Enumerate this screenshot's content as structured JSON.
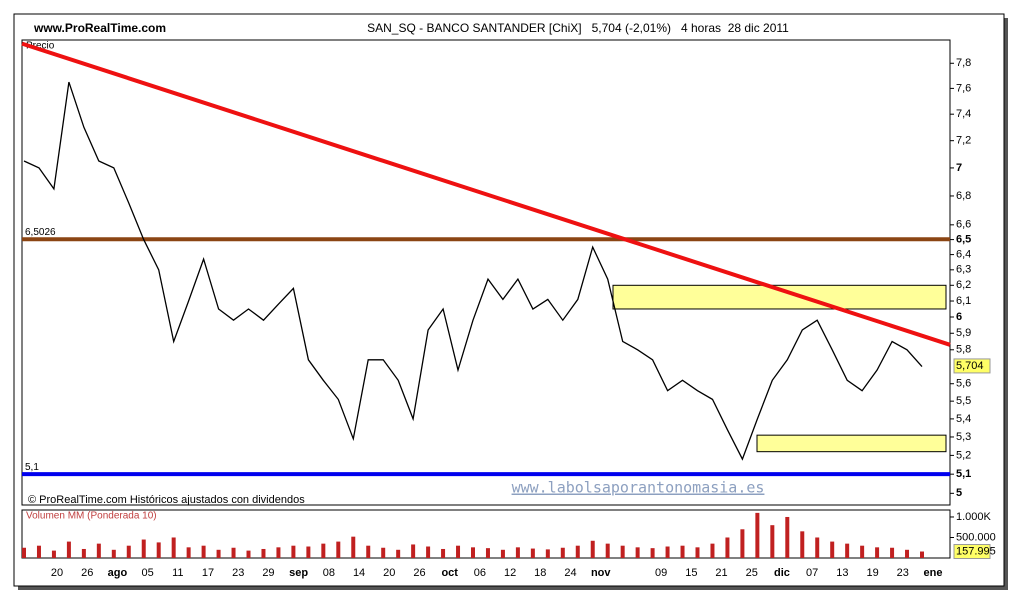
{
  "header": {
    "site": "www.ProRealTime.com",
    "title": "SAN_SQ - BANCO SANTANDER [ChiX]   5,704 (-2,01%)   4 horas  28 dic 2011"
  },
  "footer_note": "© ProRealTime.com Históricos ajustados con dividendos",
  "watermark": "www.labolsaporantonomasia.es",
  "x_axis": {
    "labels": [
      "20",
      "26",
      "ago",
      "05",
      "11",
      "17",
      "23",
      "29",
      "sep",
      "08",
      "14",
      "20",
      "26",
      "oct",
      "06",
      "12",
      "18",
      "24",
      "nov",
      null,
      "09",
      "15",
      "21",
      "25",
      "dic",
      "07",
      "13",
      "19",
      "23",
      "ene"
    ]
  },
  "chart_data": [
    {
      "type": "line",
      "panel_label": "Precio",
      "color": "#000000",
      "log_scale": true,
      "values": [
        7.05,
        7.0,
        6.85,
        7.65,
        7.3,
        7.05,
        7.0,
        6.75,
        6.5,
        6.3,
        5.85,
        6.1,
        6.37,
        6.05,
        5.98,
        6.05,
        5.98,
        6.08,
        6.18,
        5.74,
        5.62,
        5.51,
        5.29,
        5.74,
        5.74,
        5.62,
        5.4,
        5.92,
        6.05,
        5.68,
        5.98,
        6.24,
        6.11,
        6.24,
        6.05,
        6.11,
        5.98,
        6.11,
        6.45,
        6.24,
        5.85,
        5.8,
        5.74,
        5.56,
        5.62,
        5.56,
        5.51,
        5.34,
        5.18,
        5.4,
        5.62,
        5.74,
        5.92,
        5.98,
        5.8,
        5.62,
        5.56,
        5.68,
        5.85,
        5.8,
        5.7
      ],
      "ylim": [
        4.94,
        7.99
      ],
      "yticks": [
        {
          "value": 7.8,
          "label": "7,8"
        },
        {
          "value": 7.6,
          "label": "7,6"
        },
        {
          "value": 7.4,
          "label": "7,4"
        },
        {
          "value": 7.2,
          "label": "7,2"
        },
        7,
        {
          "value": 6.8,
          "label": "6,8"
        },
        {
          "value": 6.6,
          "label": "6,6"
        },
        {
          "value": 6.5,
          "label": "6,5"
        },
        {
          "value": 6.4,
          "label": "6,4"
        },
        {
          "value": 6.3,
          "label": "6,3"
        },
        {
          "value": 6.2,
          "label": "6,2"
        },
        {
          "value": 6.1,
          "label": "6,1"
        },
        6,
        {
          "value": 5.9,
          "label": "5,9"
        },
        {
          "value": 5.8,
          "label": "5,8"
        },
        {
          "value": 5.6,
          "label": "5,6"
        },
        {
          "value": 5.5,
          "label": "5,5"
        },
        {
          "value": 5.4,
          "label": "5,4"
        },
        {
          "value": 5.3,
          "label": "5,3"
        },
        {
          "value": 5.2,
          "label": "5,2"
        },
        {
          "value": 5.1,
          "label": "5,1"
        },
        5
      ],
      "last_value": {
        "value": 5.704,
        "label": "5,704"
      },
      "hlines": [
        {
          "value": 6.5026,
          "label": "6,5026",
          "color": "#8b4513"
        },
        {
          "value": 5.1,
          "label": "5,1",
          "color": "#0000ee"
        }
      ],
      "trendline": {
        "start": 7.96,
        "end": 5.83,
        "color": "#ee1111"
      },
      "zones": [
        {
          "low": 6.05,
          "high": 6.2
        },
        {
          "low": 5.22,
          "high": 5.31
        }
      ],
      "zone_color": "#ffff99"
    },
    {
      "type": "bar",
      "panel_label": "Volumen MM (Ponderada 10)",
      "color": "#c02020",
      "values": [
        250000,
        300000,
        180000,
        400000,
        220000,
        350000,
        200000,
        300000,
        450000,
        380000,
        500000,
        260000,
        300000,
        200000,
        250000,
        180000,
        220000,
        260000,
        300000,
        280000,
        350000,
        400000,
        520000,
        300000,
        250000,
        200000,
        330000,
        280000,
        220000,
        300000,
        260000,
        240000,
        200000,
        260000,
        230000,
        210000,
        250000,
        300000,
        420000,
        350000,
        300000,
        260000,
        240000,
        280000,
        300000,
        260000,
        350000,
        500000,
        700000,
        1100000,
        800000,
        1000000,
        650000,
        500000,
        400000,
        350000,
        300000,
        260000,
        250000,
        200000,
        157995
      ],
      "ylim": [
        0,
        1170000
      ],
      "yticks": [
        {
          "value": 1000000,
          "label": "1.000K"
        },
        {
          "value": 500000,
          "label": "500.000"
        }
      ],
      "last_value": {
        "value": 157995,
        "label": "157.995"
      }
    }
  ]
}
